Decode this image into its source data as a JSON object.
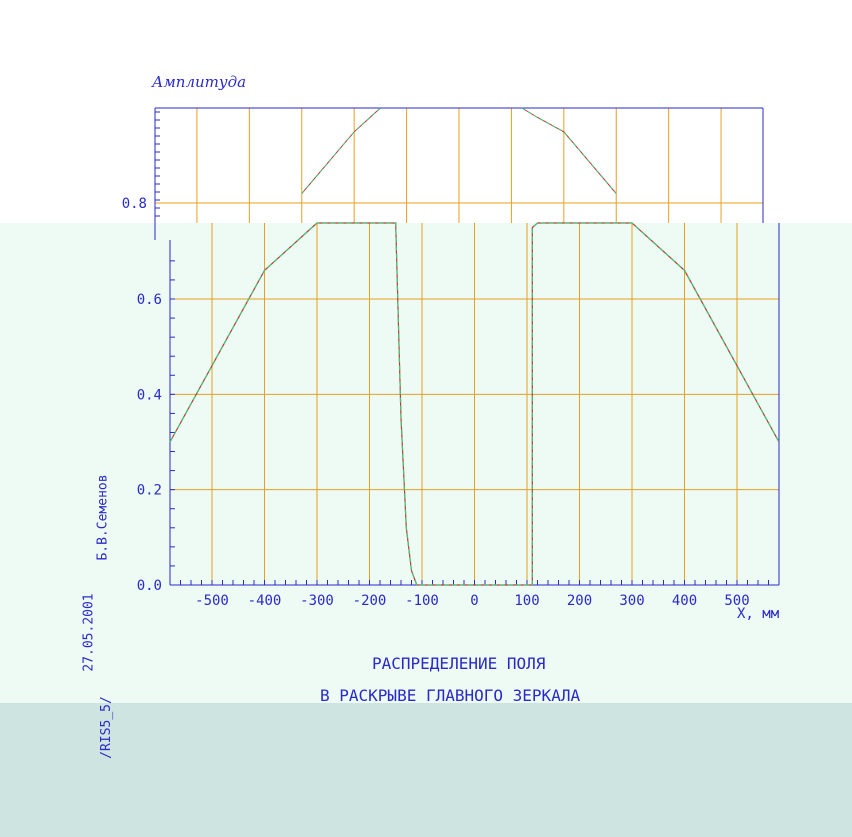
{
  "colors": {
    "background": "#ffffff",
    "panel_overlay": "#eefaf4",
    "bottom_band": "#cde4e1",
    "axis": "#2a2ac8",
    "grid": "#e8a020",
    "curve_red": "#c83232",
    "curve_green": "#3cc878",
    "text": "#2a2ac8"
  },
  "chart_data": {
    "type": "line",
    "ylabel": "Амплитуда",
    "xlabel": "X, мм",
    "xlim": [
      -580,
      580
    ],
    "ylim": [
      0,
      1.0
    ],
    "x_ticks": [
      -500,
      -400,
      -300,
      -200,
      -100,
      0,
      100,
      200,
      300,
      400,
      500
    ],
    "x_tick_labels": [
      "-500",
      "-400",
      "-300",
      "-200",
      "-100",
      "0",
      "100",
      "200",
      "300",
      "400",
      "500"
    ],
    "y_ticks": [
      0.0,
      0.2,
      0.4,
      0.6,
      0.8
    ],
    "y_tick_labels": [
      "0.0",
      "0.2",
      "0.4",
      "0.6",
      "0.8"
    ],
    "grid": true,
    "series": [
      {
        "color_key": "curve_red",
        "x": [
          -580,
          -500,
          -400,
          -300,
          -200,
          -150,
          -150,
          -140,
          -130,
          -120,
          -110,
          -100,
          -50,
          0,
          50,
          90,
          100,
          110,
          110,
          120,
          150,
          200,
          300,
          400,
          500,
          580
        ],
        "y": [
          0.3,
          0.46,
          0.66,
          0.82,
          0.95,
          1.0,
          0.75,
          0.35,
          0.12,
          0.03,
          0.0,
          0.0,
          0.0,
          0.0,
          0.0,
          0.0,
          0.0,
          0.0,
          0.75,
          1.0,
          0.98,
          0.95,
          0.82,
          0.66,
          0.46,
          0.3
        ]
      },
      {
        "color_key": "curve_green",
        "x": [
          -580,
          -500,
          -400,
          -300,
          -200,
          -150,
          -150,
          -140,
          -130,
          -120,
          -110,
          -100,
          -50,
          0,
          50,
          90,
          100,
          110,
          110,
          120,
          150,
          200,
          300,
          400,
          500,
          580
        ],
        "y": [
          0.3,
          0.46,
          0.66,
          0.82,
          0.95,
          1.0,
          0.75,
          0.35,
          0.12,
          0.03,
          0.0,
          0.0,
          0.0,
          0.0,
          0.0,
          0.0,
          0.0,
          0.0,
          0.75,
          1.0,
          0.98,
          0.95,
          0.82,
          0.66,
          0.46,
          0.3
        ]
      }
    ]
  },
  "caption": {
    "line1": "РАСПРЕДЕЛЕНИЕ ПОЛЯ",
    "line2": "В РАСКРЫВЕ ГЛАВНОГО ЗЕРКАЛА"
  },
  "side_text": {
    "author": "Б.В.Семенов",
    "date": "27.05.2001",
    "file": "/RIS5_5/"
  }
}
